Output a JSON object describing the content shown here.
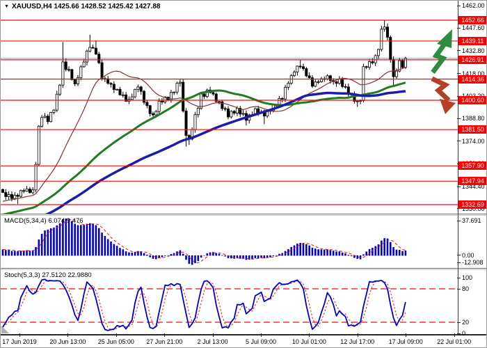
{
  "window": {
    "dropdown_icon": "▼",
    "title": "XAUUSD,H4",
    "title_values": "1425.66 1428.52 1425.42 1427.88"
  },
  "colors": {
    "level": "#ee1111",
    "badge_bg": "#ff0000",
    "badge_text": "#ffffff",
    "bid_line": "#a9a9a9",
    "candle_up": "#ffffff",
    "candle_down": "#000000",
    "candle_outline": "#000000",
    "ma_fast": "#8b2f2f",
    "ma_mid": "#1e7d1e",
    "ma_slow": "#1c1ca8",
    "macd_bar": "#0000cc",
    "macd_signal": "#ee1111",
    "stoch_main": "#0000cc",
    "stoch_signal": "#ee1111",
    "up_arrow": "#2f8b3f",
    "down_arrow": "#b2402a",
    "axis_text": "#000000"
  },
  "chart_data": {
    "type": "candlestick",
    "symbol": "XAUUSD",
    "timeframe": "H4",
    "quote_display": {
      "open": "1425.66",
      "high": "1428.52",
      "low": "1425.42",
      "close": "1427.88"
    },
    "bid_price": 1427.88,
    "bars": 135,
    "price_axis_ticks": [
      1462.0,
      1447.6,
      1432.8,
      1418.0,
      1403.2,
      1388.8,
      1374.0,
      1359.2,
      1344.4,
      1330.0
    ],
    "level_lines": [
      1452.66,
      1439.11,
      1426.91,
      1414.36,
      1400.6,
      1381.5,
      1357.9,
      1347.94,
      1332.69
    ],
    "time_labels": [
      "17 Jun 2019",
      "20 Jun 13:00",
      "25 Jun 05:00",
      "27 Jun 21:00",
      "2 Jul 13:00",
      "5 Jul 09:00",
      "10 Jul 01:00",
      "12 Jul 17:00",
      "17 Jul 09:00",
      "22 Jul 01:00"
    ],
    "close_keypoints": [
      [
        0,
        1340
      ],
      [
        4,
        1337.5
      ],
      [
        7,
        1343
      ],
      [
        10,
        1341
      ],
      [
        11,
        1360
      ],
      [
        12,
        1383
      ],
      [
        13,
        1391
      ],
      [
        15,
        1388
      ],
      [
        17,
        1395
      ],
      [
        19,
        1412
      ],
      [
        20,
        1424
      ],
      [
        22,
        1419
      ],
      [
        24,
        1410
      ],
      [
        26,
        1422
      ],
      [
        28,
        1432
      ],
      [
        29,
        1436
      ],
      [
        31,
        1431
      ],
      [
        33,
        1416
      ],
      [
        36,
        1410
      ],
      [
        40,
        1403
      ],
      [
        42,
        1400
      ],
      [
        45,
        1410
      ],
      [
        48,
        1396
      ],
      [
        50,
        1390
      ],
      [
        52,
        1399
      ],
      [
        55,
        1402
      ],
      [
        57,
        1407
      ],
      [
        59,
        1414
      ],
      [
        60,
        1392
      ],
      [
        61,
        1378
      ],
      [
        62,
        1374
      ],
      [
        64,
        1390
      ],
      [
        66,
        1403
      ],
      [
        69,
        1407
      ],
      [
        72,
        1398
      ],
      [
        75,
        1391
      ],
      [
        78,
        1394
      ],
      [
        81,
        1389
      ],
      [
        84,
        1394
      ],
      [
        87,
        1391
      ],
      [
        90,
        1396
      ],
      [
        93,
        1403
      ],
      [
        95,
        1412
      ],
      [
        97,
        1420
      ],
      [
        99,
        1423
      ],
      [
        101,
        1418
      ],
      [
        103,
        1410
      ],
      [
        105,
        1413
      ],
      [
        108,
        1416
      ],
      [
        110,
        1412
      ],
      [
        112,
        1414
      ],
      [
        114,
        1408
      ],
      [
        116,
        1404
      ],
      [
        118,
        1399
      ],
      [
        119,
        1402
      ],
      [
        120,
        1421
      ],
      [
        122,
        1425
      ],
      [
        124,
        1428
      ],
      [
        125,
        1434
      ],
      [
        126,
        1446
      ],
      [
        127,
        1449
      ],
      [
        128,
        1440
      ],
      [
        129,
        1428
      ],
      [
        130,
        1415
      ],
      [
        131,
        1421
      ],
      [
        132,
        1425
      ],
      [
        133,
        1423
      ],
      [
        134,
        1427.88
      ]
    ],
    "wick_events": [
      {
        "bar": 5,
        "low": 1333.2
      },
      {
        "bar": 20,
        "high": 1438.4
      },
      {
        "bar": 29,
        "high": 1443.2
      },
      {
        "bar": 31,
        "high": 1439.5
      },
      {
        "bar": 61,
        "low": 1370.5
      },
      {
        "bar": 62,
        "low": 1371.5
      },
      {
        "bar": 81,
        "low": 1384.2
      },
      {
        "bar": 87,
        "low": 1385.0
      },
      {
        "bar": 99,
        "high": 1427.0
      },
      {
        "bar": 118,
        "low": 1396.2
      },
      {
        "bar": 127,
        "high": 1452.66
      },
      {
        "bar": 128,
        "high": 1450.0
      },
      {
        "bar": 130,
        "low": 1410.3
      }
    ],
    "moving_averages": [
      {
        "name": "fast",
        "period": 20
      },
      {
        "name": "mid",
        "period": 55
      },
      {
        "name": "slow",
        "period": 90
      }
    ],
    "indicators": {
      "macd": {
        "label": "MACD(5,34,4)",
        "current_values": "6.074 9.476",
        "fast": 5,
        "slow": 34,
        "signal": 4,
        "axis_labels": [
          "37.691",
          "0.00",
          "-12.908"
        ],
        "axis_max": 37.691,
        "axis_zero": 0.0,
        "axis_min": -12.908
      },
      "stoch": {
        "label": "Stoch(5,3,3)",
        "current_values": "27.5120 22.9880",
        "k": 5,
        "slowing": 3,
        "d": 3,
        "axis_labels": [
          "100",
          "80",
          "20",
          "0"
        ],
        "upper_level": 80,
        "lower_level": 20
      }
    },
    "annotations": [
      {
        "type": "up-arrow",
        "direction": "up"
      },
      {
        "type": "down-arrow",
        "direction": "down"
      }
    ]
  }
}
